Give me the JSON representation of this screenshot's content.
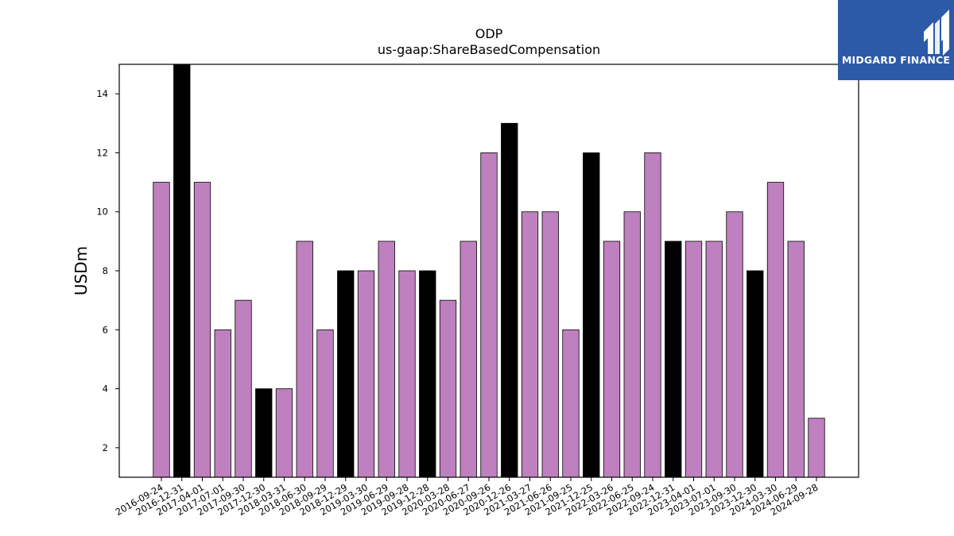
{
  "chart_data": {
    "type": "bar",
    "title": "ODP",
    "subtitle": "us-gaap:ShareBasedCompensation",
    "xlabel": "",
    "ylabel": "USDm",
    "ylim": [
      1,
      15
    ],
    "yticks": [
      2,
      4,
      6,
      8,
      10,
      12,
      14
    ],
    "grid": false,
    "categories": [
      "2016-09-24",
      "2016-12-31",
      "2017-04-01",
      "2017-07-01",
      "2017-09-30",
      "2017-12-30",
      "2018-03-31",
      "2018-06-30",
      "2018-09-29",
      "2018-12-29",
      "2019-03-30",
      "2019-06-29",
      "2019-09-28",
      "2019-12-28",
      "2020-03-28",
      "2020-06-27",
      "2020-09-26",
      "2020-12-26",
      "2021-03-27",
      "2021-06-26",
      "2021-09-25",
      "2021-12-25",
      "2022-03-26",
      "2022-06-25",
      "2022-09-24",
      "2022-12-31",
      "2023-04-01",
      "2023-07-01",
      "2023-09-30",
      "2023-12-30",
      "2024-03-30",
      "2024-06-29",
      "2024-09-28"
    ],
    "values": [
      11,
      15,
      11,
      6,
      7,
      4,
      4,
      9,
      6,
      8,
      8,
      9,
      8,
      8,
      7,
      9,
      12,
      13,
      10,
      10,
      6,
      12,
      9,
      10,
      12,
      9,
      9,
      9,
      10,
      8,
      11,
      9,
      3
    ],
    "highlight": [
      false,
      true,
      false,
      false,
      false,
      true,
      false,
      false,
      false,
      true,
      false,
      false,
      false,
      true,
      false,
      false,
      false,
      true,
      false,
      false,
      false,
      true,
      false,
      false,
      false,
      true,
      false,
      false,
      false,
      true,
      false,
      false,
      false
    ],
    "colors": {
      "bar": "#bf80bf",
      "highlight": "#000000",
      "edge": "#000000"
    }
  },
  "logo": {
    "text": "MIDGARD FINANCE",
    "background": "#2c5aa8"
  }
}
